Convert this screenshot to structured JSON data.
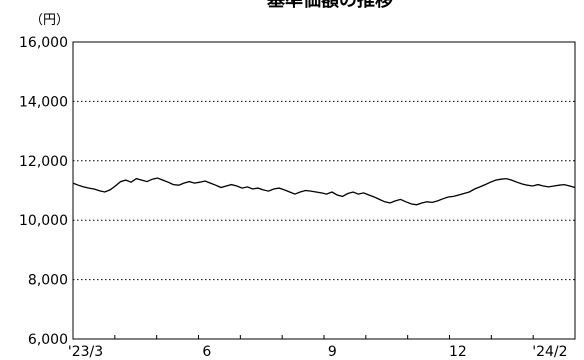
{
  "chart_data": {
    "type": "line",
    "title": "基準価額の推移",
    "unit_label": "（円）",
    "ylim": [
      6000,
      16000
    ],
    "yticks": [
      6000,
      8000,
      10000,
      12000,
      14000,
      16000
    ],
    "ytick_labels": [
      "6,000",
      "8,000",
      "10,000",
      "12,000",
      "14,000",
      "16,000"
    ],
    "grid": true,
    "legend": "none",
    "x_tick_labels": [
      "'23/3",
      "6",
      "9",
      "12",
      "'24/2"
    ],
    "series": [
      {
        "color": "#000000",
        "values": [
          11250,
          11180,
          11120,
          11080,
          11050,
          10990,
          10950,
          11020,
          11150,
          11300,
          11350,
          11280,
          11400,
          11350,
          11300,
          11380,
          11420,
          11350,
          11280,
          11200,
          11180,
          11250,
          11300,
          11250,
          11280,
          11320,
          11250,
          11180,
          11100,
          11150,
          11200,
          11150,
          11080,
          11120,
          11050,
          11080,
          11020,
          10980,
          11050,
          11080,
          11020,
          10950,
          10880,
          10950,
          11000,
          10980,
          10950,
          10920,
          10880,
          10950,
          10850,
          10800,
          10900,
          10950,
          10880,
          10920,
          10850,
          10780,
          10700,
          10620,
          10580,
          10650,
          10700,
          10620,
          10550,
          10520,
          10580,
          10620,
          10600,
          10650,
          10720,
          10780,
          10800,
          10850,
          10900,
          10950,
          11050,
          11120,
          11200,
          11280,
          11350,
          11380,
          11400,
          11350,
          11280,
          11220,
          11180,
          11150,
          11200,
          11150,
          11120,
          11150,
          11180,
          11200,
          11150,
          11100
        ]
      }
    ]
  }
}
